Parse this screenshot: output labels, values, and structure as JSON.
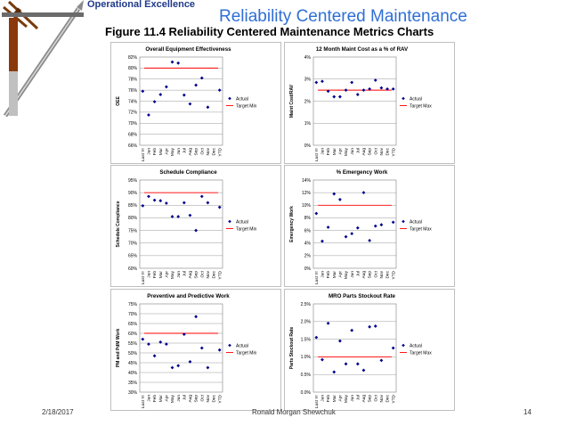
{
  "header": {
    "brand": "Operational Excellence",
    "title": "Reliability Centered Maintenance",
    "figure_title": "Figure 11.4  Reliability Centered Maintenance Metrics Charts"
  },
  "footer": {
    "date": "2/18/2017",
    "author": "Ronald Morgan Shewchuk",
    "page": "14"
  },
  "colors": {
    "series": "#00008b",
    "target": "#ff0000",
    "grid": "#808080",
    "plot_bg": "#ffffff"
  },
  "chart_data": [
    {
      "type": "scatter",
      "title": "Overall Equipment Effectiveness",
      "ylabel": "OEE",
      "categories": [
        "Last Yr",
        "Jan",
        "Feb",
        "Mar",
        "Apr",
        "May",
        "Jun",
        "Jul",
        "Aug",
        "Sep",
        "Oct",
        "Nov",
        "Dec",
        "YTD"
      ],
      "yticks": [
        "66%",
        "68%",
        "70%",
        "72%",
        "74%",
        "76%",
        "78%",
        "80%",
        "82%"
      ],
      "ylim": [
        66,
        82
      ],
      "ystep": 2,
      "series": [
        {
          "name": "Actual",
          "values": [
            75.8,
            71.5,
            73.9,
            75.2,
            76.6,
            81.1,
            80.9,
            75.1,
            73.5,
            76.9,
            78.2,
            72.9,
            null,
            76.0
          ]
        }
      ],
      "target": {
        "name": "Target Min",
        "value": 80
      }
    },
    {
      "type": "scatter",
      "title": "12 Month Maint Cost as a % of RAV",
      "ylabel": "Maint Cost/RAV",
      "categories": [
        "Last Yr",
        "Jan",
        "Feb",
        "Mar",
        "Apr",
        "May",
        "Jun",
        "Jul",
        "Aug",
        "Sep",
        "Oct",
        "Nov",
        "Dec",
        "YTD"
      ],
      "yticks": [
        "0%",
        "1%",
        "2%",
        "3%",
        "4%"
      ],
      "ylim": [
        0,
        4
      ],
      "ystep": 1,
      "series": [
        {
          "name": "Actual",
          "values": [
            2.85,
            2.9,
            2.45,
            2.2,
            2.2,
            2.5,
            2.85,
            2.3,
            2.5,
            2.55,
            2.95,
            2.6,
            2.55,
            2.55
          ]
        }
      ],
      "target": {
        "name": "Target Max",
        "value": 2.5
      }
    },
    {
      "type": "scatter",
      "title": "Schedule Compliance",
      "ylabel": "Schedule Compliance",
      "categories": [
        "Last Yr",
        "Jan",
        "Feb",
        "Mar",
        "Apr",
        "May",
        "Jun",
        "Jul",
        "Aug",
        "Sep",
        "Oct",
        "Nov",
        "Dec",
        "YTD"
      ],
      "yticks": [
        "60%",
        "65%",
        "70%",
        "75%",
        "80%",
        "85%",
        "90%",
        "95%"
      ],
      "ylim": [
        60,
        95
      ],
      "ystep": 5,
      "series": [
        {
          "name": "Actual",
          "values": [
            84.8,
            88.5,
            87.0,
            86.8,
            85.8,
            80.5,
            80.5,
            86.0,
            81.0,
            75.0,
            88.5,
            86.0,
            null,
            84.2
          ]
        }
      ],
      "target": {
        "name": "Target Min",
        "value": 90
      }
    },
    {
      "type": "scatter",
      "title": "% Emergency Work",
      "ylabel": "Emergency Work",
      "categories": [
        "Last Yr",
        "Jan",
        "Feb",
        "Mar",
        "Apr",
        "May",
        "Jun",
        "Jul",
        "Aug",
        "Sep",
        "Oct",
        "Nov",
        "Dec",
        "YTD"
      ],
      "yticks": [
        "0%",
        "2%",
        "4%",
        "6%",
        "8%",
        "10%",
        "12%",
        "14%"
      ],
      "ylim": [
        0,
        14
      ],
      "ystep": 2,
      "series": [
        {
          "name": "Actual",
          "values": [
            8.7,
            4.3,
            6.5,
            11.8,
            10.9,
            5.0,
            5.5,
            6.4,
            12.0,
            4.4,
            6.7,
            6.9,
            null,
            7.3
          ]
        }
      ],
      "target": {
        "name": "Target Max",
        "value": 10
      }
    },
    {
      "type": "scatter",
      "title": "Preventive and Predictive Work",
      "ylabel": "PM and PdM Work",
      "categories": [
        "Last Yr",
        "Jan",
        "Feb",
        "Mar",
        "Apr",
        "May",
        "Jun",
        "Jul",
        "Aug",
        "Sep",
        "Oct",
        "Nov",
        "Dec",
        "YTD"
      ],
      "yticks": [
        "30%",
        "35%",
        "40%",
        "45%",
        "50%",
        "55%",
        "60%",
        "65%",
        "70%",
        "75%"
      ],
      "ylim": [
        30,
        75
      ],
      "ystep": 5,
      "series": [
        {
          "name": "Actual",
          "values": [
            57.0,
            54.5,
            48.5,
            55.5,
            54.5,
            42.5,
            43.5,
            59.5,
            45.5,
            68.5,
            52.5,
            42.5,
            null,
            51.5
          ]
        }
      ],
      "target": {
        "name": "Target Min",
        "value": 60
      }
    },
    {
      "type": "scatter",
      "title": "MRO Parts Stockout Rate",
      "ylabel": "Parts Stockout Rate",
      "categories": [
        "Last Yr",
        "Jan",
        "Feb",
        "Mar",
        "Apr",
        "May",
        "Jun",
        "Jul",
        "Aug",
        "Sep",
        "Oct",
        "Nov",
        "Dec",
        "YTD"
      ],
      "yticks": [
        "0.0%",
        "0.5%",
        "1.0%",
        "1.5%",
        "2.0%",
        "2.5%"
      ],
      "ylim": [
        0,
        2.5
      ],
      "ystep": 0.5,
      "series": [
        {
          "name": "Actual",
          "values": [
            1.55,
            0.92,
            1.95,
            0.57,
            1.45,
            0.8,
            1.75,
            0.8,
            0.62,
            1.85,
            1.87,
            0.9,
            null,
            1.25
          ]
        }
      ],
      "target": {
        "name": "Target Max",
        "value": 1.0
      }
    }
  ]
}
